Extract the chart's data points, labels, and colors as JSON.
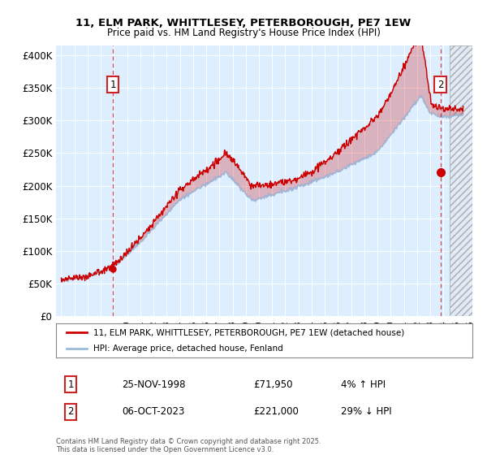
{
  "title_line1": "11, ELM PARK, WHITTLESEY, PETERBOROUGH, PE7 1EW",
  "title_line2": "Price paid vs. HM Land Registry's House Price Index (HPI)",
  "ylabel_ticks": [
    "£0",
    "£50K",
    "£100K",
    "£150K",
    "£200K",
    "£250K",
    "£300K",
    "£350K",
    "£400K"
  ],
  "ylabel_values": [
    0,
    50000,
    100000,
    150000,
    200000,
    250000,
    300000,
    350000,
    400000
  ],
  "ylim": [
    0,
    415000
  ],
  "xlim_start": 1994.6,
  "xlim_end": 2026.2,
  "bg_color": "#ddeeff",
  "line1_color": "#cc0000",
  "line2_color": "#99bbdd",
  "marker1_date": 1998.91,
  "marker1_value": 71950,
  "marker2_date": 2023.77,
  "marker2_value": 221000,
  "legend_label1": "11, ELM PARK, WHITTLESEY, PETERBOROUGH, PE7 1EW (detached house)",
  "legend_label2": "HPI: Average price, detached house, Fenland",
  "annotation1_date": "25-NOV-1998",
  "annotation1_price": "£71,950",
  "annotation1_hpi": "4% ↑ HPI",
  "annotation2_date": "06-OCT-2023",
  "annotation2_price": "£221,000",
  "annotation2_hpi": "29% ↓ HPI",
  "footer": "Contains HM Land Registry data © Crown copyright and database right 2025.\nThis data is licensed under the Open Government Licence v3.0.",
  "hatch_start": 2024.5
}
